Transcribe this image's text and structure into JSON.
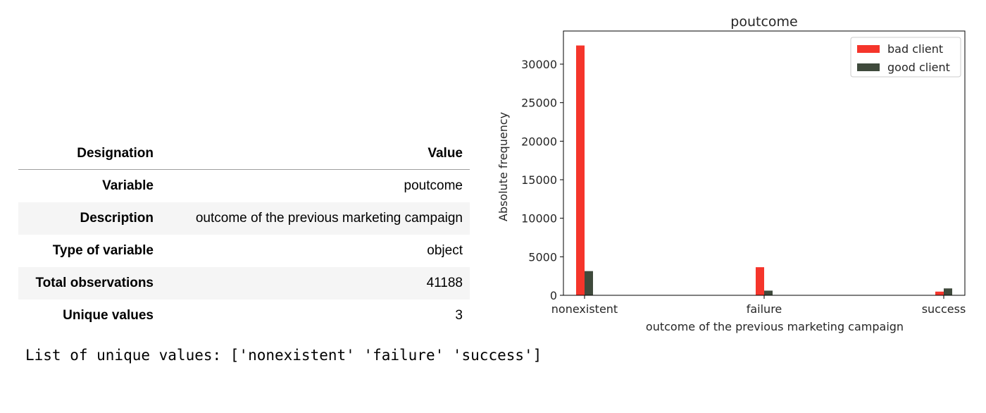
{
  "table": {
    "header": {
      "designation": "Designation",
      "value": "Value"
    },
    "rows": [
      {
        "designation": "Variable",
        "value": "poutcome"
      },
      {
        "designation": "Description",
        "value": "outcome of the previous marketing campaign"
      },
      {
        "designation": "Type of variable",
        "value": "object"
      },
      {
        "designation": "Total observations",
        "value": "41188"
      },
      {
        "designation": "Unique values",
        "value": "3"
      }
    ]
  },
  "unique_values_line": "List of unique values: ['nonexistent' 'failure' 'success']",
  "chart_data": {
    "type": "bar",
    "title": "poutcome",
    "xlabel": "outcome of the previous marketing campaign",
    "ylabel": "Absolute frequency",
    "categories": [
      "nonexistent",
      "failure",
      "success"
    ],
    "series": [
      {
        "name": "bad client",
        "values": [
          32422,
          3647,
          479
        ],
        "color": "#f5352b"
      },
      {
        "name": "good client",
        "values": [
          3141,
          605,
          894
        ],
        "color": "#3f4a3c"
      }
    ],
    "ylim": [
      0,
      34300
    ],
    "yticks": [
      0,
      5000,
      10000,
      15000,
      20000,
      25000,
      30000
    ],
    "grid": false,
    "legend": "top-right"
  }
}
